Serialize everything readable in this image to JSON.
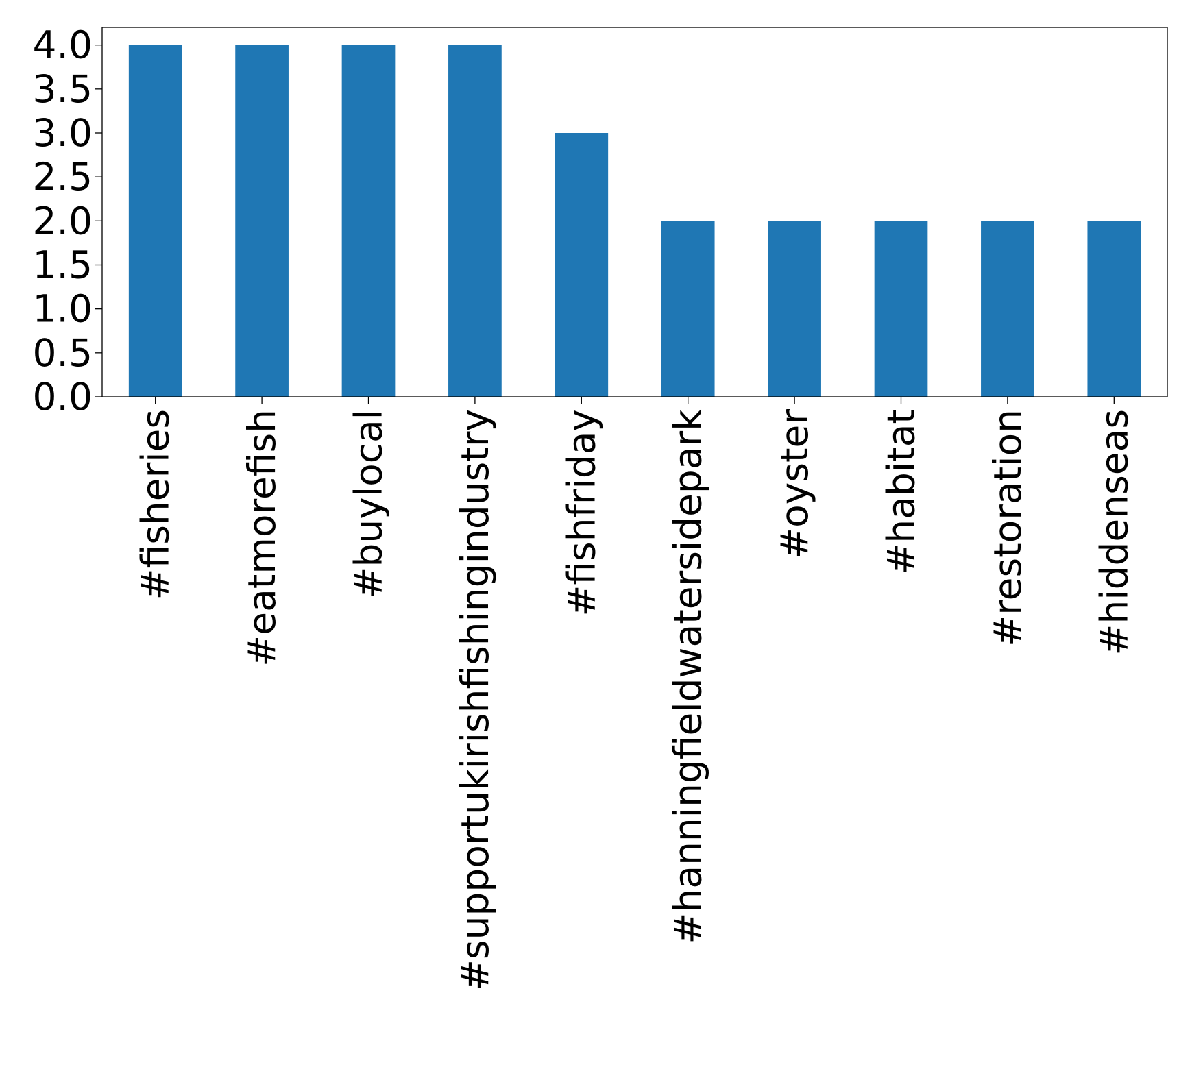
{
  "chart_data": {
    "type": "bar",
    "title": "",
    "xlabel": "",
    "ylabel": "",
    "categories": [
      "#fisheries",
      "#eatmorefish",
      "#buylocal",
      "#supportukirishfishingindustry",
      "#fishfriday",
      "#hanningfieldwatersidepark",
      "#oyster",
      "#habitat",
      "#restoration",
      "#hiddenseas"
    ],
    "values": [
      4,
      4,
      4,
      4,
      3,
      2,
      2,
      2,
      2,
      2
    ],
    "ylim": [
      0,
      4.2
    ],
    "yticks": [
      "0.0",
      "0.5",
      "1.0",
      "1.5",
      "2.0",
      "2.5",
      "3.0",
      "3.5",
      "4.0"
    ],
    "bar_color": "#1f77b4",
    "grid": false,
    "legend": "none"
  }
}
